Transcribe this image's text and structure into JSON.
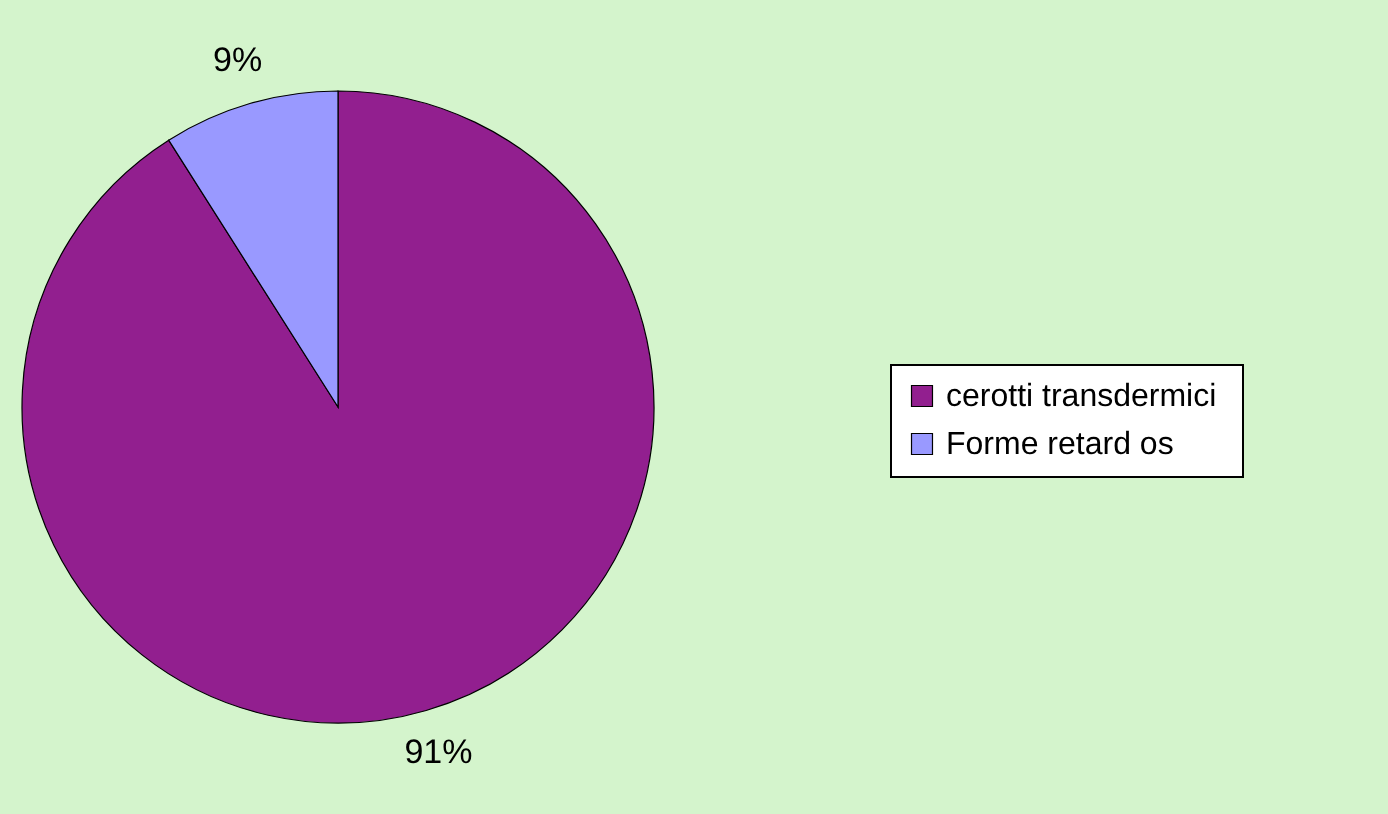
{
  "chart_data": {
    "type": "pie",
    "categories": [
      "cerotti  transdermici",
      "Forme retard os"
    ],
    "values": [
      91,
      9
    ],
    "colors": [
      "#921f8f",
      "#9999ff"
    ],
    "value_labels": [
      "91%",
      "9%"
    ],
    "legend": "right"
  }
}
